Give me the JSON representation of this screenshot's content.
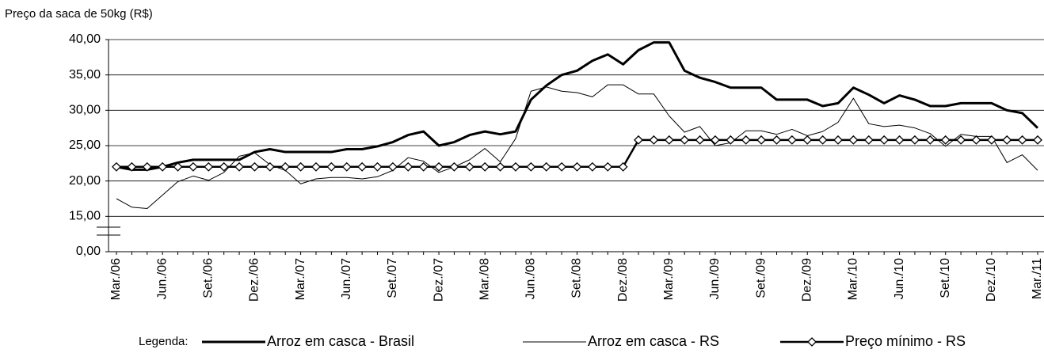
{
  "chart_data": {
    "type": "line",
    "y_axis_label": "Preço da saca de 50kg (R$)",
    "legend_title": "Legenda:",
    "categories": [
      "Mar./06",
      null,
      null,
      "Jun./06",
      null,
      null,
      "Set./06",
      null,
      null,
      "Dez./06",
      null,
      null,
      "Mar./07",
      null,
      null,
      "Jun./07",
      null,
      null,
      "Set./07",
      null,
      null,
      "Dez./07",
      null,
      null,
      "Mar./08",
      null,
      null,
      "Jun./08",
      null,
      null,
      "Set./08",
      null,
      null,
      "Dez./08",
      null,
      null,
      "Mar./09",
      null,
      null,
      "Jun./09",
      null,
      null,
      "Set./09",
      null,
      null,
      "Dez./09",
      null,
      null,
      "Mar./10",
      null,
      null,
      "Jun./10",
      null,
      null,
      "Set./10",
      null,
      null,
      "Dez./10",
      null,
      null,
      "Mar./11"
    ],
    "series": [
      {
        "name": "Arroz em casca - Brasil",
        "color": "#000000",
        "width": 3,
        "marker": "none",
        "values": [
          22,
          21.6,
          21.6,
          22,
          22.6,
          23,
          23,
          23,
          23,
          24.1,
          24.5,
          24.1,
          24.1,
          24.1,
          24.1,
          24.5,
          24.5,
          24.9,
          25.5,
          26.5,
          27,
          25,
          25.5,
          26.5,
          27,
          26.6,
          27,
          31.5,
          33.5,
          35,
          35.6,
          37,
          37.9,
          36.5,
          38.5,
          39.6,
          39.6,
          35.6,
          34.6,
          34,
          33.2,
          33.2,
          33.2,
          31.5,
          31.5,
          31.5,
          30.6,
          31,
          33.2,
          32.2,
          31,
          32.1,
          31.5,
          30.6,
          30.6,
          31,
          31,
          31,
          30,
          29.6,
          27.5
        ]
      },
      {
        "name": "Arroz em casca - RS",
        "color": "#000000",
        "width": 1,
        "marker": "none",
        "values": [
          17.5,
          16.3,
          16.1,
          18,
          19.9,
          20.7,
          20.1,
          21.2,
          23.5,
          24,
          22.3,
          21.5,
          19.6,
          20.3,
          20.5,
          20.5,
          20.3,
          20.6,
          21.5,
          23.3,
          22.8,
          21.2,
          22,
          23,
          24.6,
          22.7,
          26,
          32.7,
          33.3,
          32.7,
          32.5,
          31.9,
          33.6,
          33.6,
          32.3,
          32.3,
          29.2,
          26.9,
          27.7,
          25,
          25.4,
          27.1,
          27.1,
          26.6,
          27.3,
          26.4,
          27,
          28.3,
          31.7,
          28.1,
          27.7,
          27.9,
          27.5,
          26.7,
          24.9,
          26.6,
          26.3,
          26.3,
          22.6,
          23.7,
          21.5
        ]
      },
      {
        "name": "Preço mínimo - RS",
        "color": "#000000",
        "width": 2.5,
        "marker": "diamond",
        "values": [
          22,
          22,
          22,
          22,
          22,
          22,
          22,
          22,
          22,
          22,
          22,
          22,
          22,
          22,
          22,
          22,
          22,
          22,
          22,
          22,
          22,
          22,
          22,
          22,
          22,
          22,
          22,
          22,
          22,
          22,
          22,
          22,
          22,
          22,
          25.8,
          25.8,
          25.8,
          25.8,
          25.8,
          25.8,
          25.8,
          25.8,
          25.8,
          25.8,
          25.8,
          25.8,
          25.8,
          25.8,
          25.8,
          25.8,
          25.8,
          25.8,
          25.8,
          25.8,
          25.8,
          25.8,
          25.8,
          25.8,
          25.8,
          25.8,
          25.8
        ]
      }
    ],
    "ylim": [
      0,
      40
    ],
    "y_break": [
      0,
      15
    ],
    "yticks": [
      {
        "value": 0,
        "label": "0,00"
      },
      {
        "value": 15,
        "label": "15,00"
      },
      {
        "value": 20,
        "label": "20,00"
      },
      {
        "value": 25,
        "label": "25,00"
      },
      {
        "value": 30,
        "label": "30,00"
      },
      {
        "value": 35,
        "label": "35,00"
      },
      {
        "value": 40,
        "label": "40,00"
      }
    ],
    "grid": true
  }
}
